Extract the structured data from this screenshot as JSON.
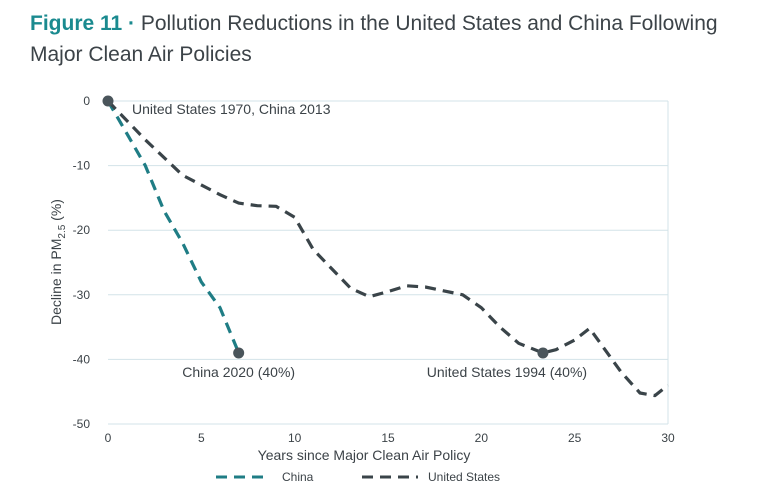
{
  "header": {
    "figure_label": "Figure 11 ·",
    "title": "Pollution Reductions in the United States and China Following Major Clean Air Policies"
  },
  "colors": {
    "china": "#1f7d85",
    "united_states": "#3a4449",
    "grid": "#d3e3e8",
    "text": "#3c4348"
  },
  "chart_data": {
    "type": "line",
    "xlabel": "Years since Major Clean Air Policy",
    "ylabel": "Decline in PM",
    "ylabel_subscript": "2.5",
    "ylabel_suffix": " (%)",
    "xlim": [
      0,
      30
    ],
    "ylim": [
      -50,
      0
    ],
    "xticks": [
      0,
      5,
      10,
      15,
      20,
      25,
      30
    ],
    "yticks": [
      0,
      -10,
      -20,
      -30,
      -40,
      -50
    ],
    "grid": true,
    "legend_position": "bottom",
    "series": [
      {
        "name": "China",
        "color_key": "china",
        "points": [
          [
            0,
            0
          ],
          [
            1,
            -5
          ],
          [
            2,
            -10
          ],
          [
            3,
            -17
          ],
          [
            4,
            -22
          ],
          [
            5,
            -28
          ],
          [
            6,
            -32
          ],
          [
            7,
            -39
          ]
        ]
      },
      {
        "name": "United States",
        "color_key": "united_states",
        "points": [
          [
            0,
            0
          ],
          [
            2,
            -6
          ],
          [
            4,
            -11.5
          ],
          [
            6,
            -14.5
          ],
          [
            7,
            -15.8
          ],
          [
            8,
            -16.2
          ],
          [
            9,
            -16.3
          ],
          [
            10,
            -18
          ],
          [
            11,
            -23
          ],
          [
            12,
            -26
          ],
          [
            13,
            -29
          ],
          [
            14,
            -30.3
          ],
          [
            15,
            -29.5
          ],
          [
            16,
            -28.6
          ],
          [
            17,
            -28.8
          ],
          [
            18,
            -29.4
          ],
          [
            19,
            -30
          ],
          [
            20,
            -32
          ],
          [
            21,
            -35
          ],
          [
            22,
            -37.5
          ],
          [
            23.3,
            -39
          ],
          [
            24,
            -38.5
          ],
          [
            25,
            -37
          ],
          [
            25.8,
            -35.2
          ],
          [
            26.5,
            -38
          ],
          [
            27.5,
            -42
          ],
          [
            28.5,
            -45.2
          ],
          [
            29.3,
            -45.6
          ],
          [
            30,
            -44
          ]
        ]
      }
    ],
    "annotations": [
      {
        "label": "United States 1970, China 2013",
        "x": 0,
        "y": 0,
        "marker": true
      },
      {
        "label": "China 2020 (40%)",
        "x": 7,
        "y": -39,
        "marker": true
      },
      {
        "label": "United States 1994 (40%)",
        "x": 23.3,
        "y": -39,
        "marker": true
      }
    ]
  }
}
